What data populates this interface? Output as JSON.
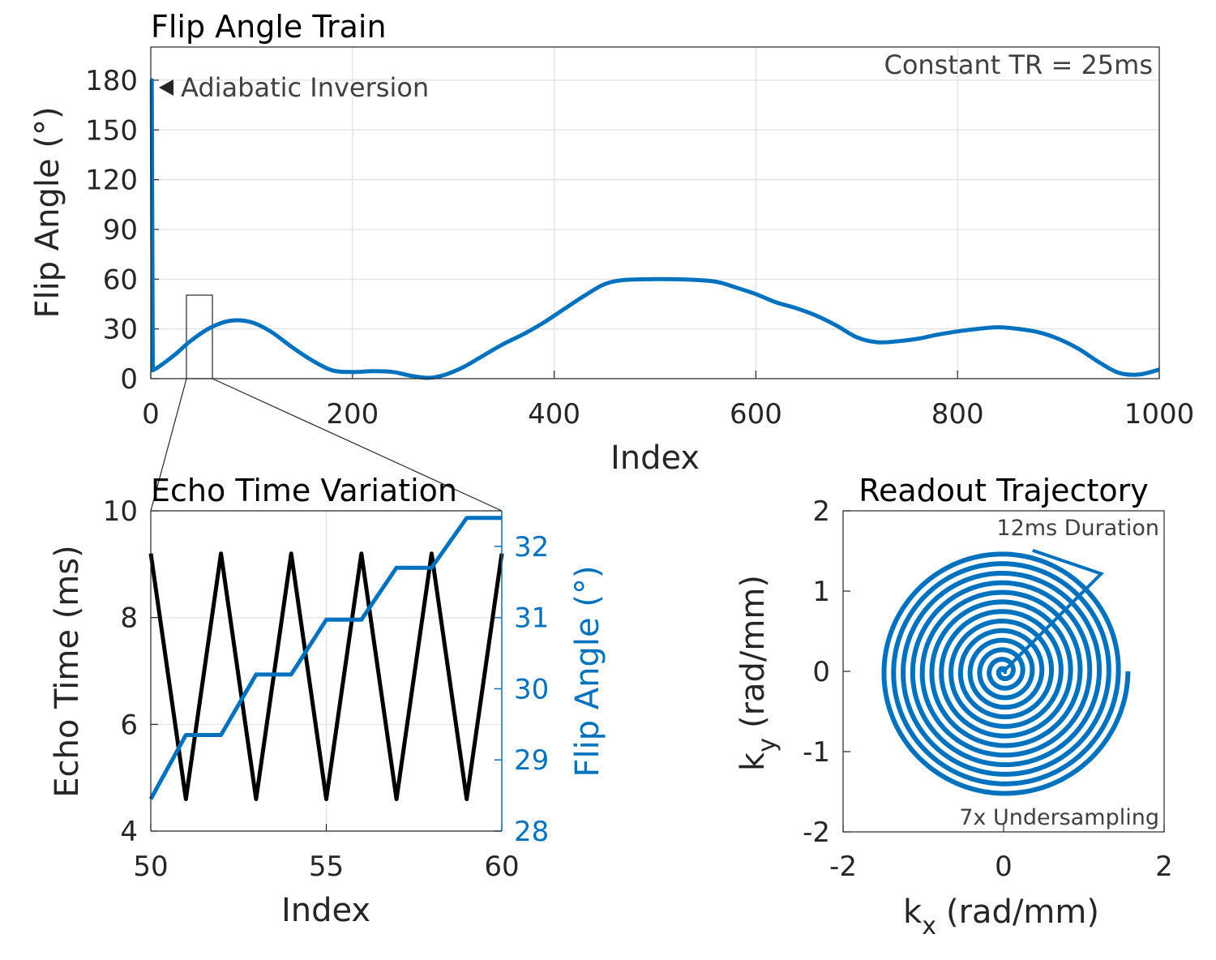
{
  "colors": {
    "blue": "#0072BD",
    "black": "#000000",
    "axis": "#262626"
  },
  "chart_data": [
    {
      "type": "line",
      "title": "Flip Angle Train",
      "xlabel": "Index",
      "ylabel": "Flip Angle (°)",
      "xlim": [
        0,
        1000
      ],
      "ylim": [
        0,
        200
      ],
      "xticks": [
        0,
        200,
        400,
        600,
        800,
        1000
      ],
      "yticks": [
        0,
        30,
        60,
        90,
        120,
        150,
        180
      ],
      "grid": true,
      "annotations": {
        "inversion": "Adiabatic Inversion",
        "tr": "Constant TR = 25ms"
      },
      "series": [
        {
          "color": "#0072BD",
          "x": [
            0,
            1,
            2,
            10,
            25,
            40,
            60,
            80,
            100,
            120,
            140,
            160,
            180,
            200,
            220,
            240,
            260,
            275,
            290,
            310,
            330,
            350,
            370,
            390,
            410,
            430,
            450,
            470,
            500,
            530,
            560,
            580,
            600,
            620,
            640,
            660,
            680,
            700,
            720,
            740,
            760,
            780,
            800,
            820,
            840,
            860,
            880,
            900,
            920,
            940,
            960,
            980,
            1000
          ],
          "y": [
            180,
            180,
            5,
            8,
            15,
            23,
            31,
            35,
            34,
            28,
            19,
            11,
            5,
            4,
            4.5,
            4,
            1.5,
            0.5,
            2,
            7,
            14,
            21,
            27,
            34,
            42,
            50,
            57,
            59.5,
            60,
            59.8,
            58.5,
            55,
            51,
            46,
            42.5,
            38,
            32,
            25,
            22,
            22.5,
            24,
            26.5,
            28.5,
            30,
            31,
            30,
            28,
            24,
            18,
            10,
            3.5,
            2.5,
            5.5
          ]
        }
      ]
    },
    {
      "type": "line",
      "title": "Echo Time Variation",
      "xlabel": "Index",
      "ylabel_left": "Echo Time (ms)",
      "ylabel_right": "Flip Angle (°)",
      "xlim": [
        50,
        60
      ],
      "ylim_left": [
        4,
        10
      ],
      "ylim_right": [
        28,
        32.5
      ],
      "xticks": [
        50,
        55,
        60
      ],
      "yticks_left": [
        4,
        6,
        8,
        10
      ],
      "yticks_right": [
        28,
        29,
        30,
        31,
        32
      ],
      "series": [
        {
          "name": "Echo Time",
          "axis": "left",
          "color": "#000000",
          "x": [
            50,
            51,
            52,
            53,
            54,
            55,
            56,
            57,
            58,
            59,
            60
          ],
          "y": [
            9.2,
            4.6,
            9.2,
            4.6,
            9.2,
            4.6,
            9.2,
            4.6,
            9.2,
            4.6,
            9.2
          ]
        },
        {
          "name": "Flip Angle",
          "axis": "right",
          "color": "#0072BD",
          "x": [
            50,
            51,
            52,
            53,
            54,
            55,
            56,
            57,
            58,
            59,
            60
          ],
          "y": [
            28.45,
            29.35,
            29.35,
            30.2,
            30.2,
            30.97,
            30.97,
            31.7,
            31.7,
            32.4,
            32.4
          ]
        }
      ]
    },
    {
      "type": "line",
      "title": "Readout Trajectory",
      "xlabel": "k",
      "xlabel_sub": "x",
      "xlabel_unit": "(rad/mm)",
      "ylabel": "k",
      "ylabel_sub": "y",
      "ylabel_unit": "(rad/mm)",
      "xlim": [
        -2,
        2
      ],
      "ylim": [
        -2,
        2
      ],
      "xticks": [
        -2,
        0,
        2
      ],
      "yticks": [
        -2,
        -1,
        0,
        1,
        2
      ],
      "annotations": {
        "duration": "12ms Duration",
        "undersampling": "7x Undersampling"
      },
      "spiral": {
        "turns": 13,
        "max_radius": 1.55,
        "arm_angle_deg": 45,
        "arm_end_radius": 1.72
      },
      "color": "#0072BD"
    }
  ]
}
